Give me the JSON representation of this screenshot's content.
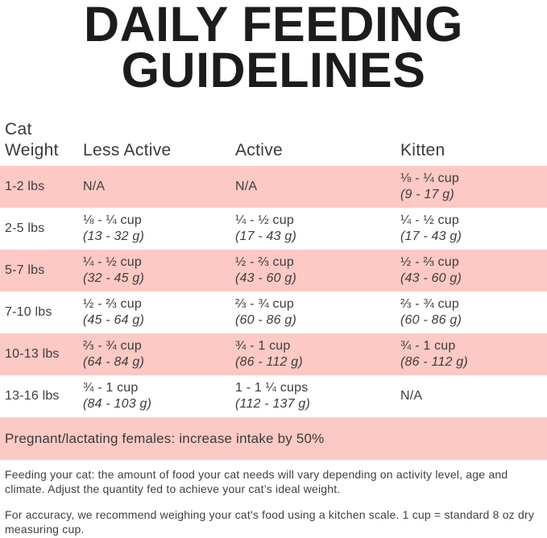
{
  "title": {
    "line1": "DAILY FEEDING",
    "line2": "GUIDELINES"
  },
  "table": {
    "header": {
      "weight_line1": "Cat",
      "weight_line2": "Weight",
      "less_active": "Less Active",
      "active": "Active",
      "kitten": "Kitten"
    },
    "rows": [
      {
        "weight": "1-2 lbs",
        "less_active": {
          "cups": "N/A",
          "grams": ""
        },
        "active": {
          "cups": "N/A",
          "grams": ""
        },
        "kitten": {
          "cups": "⅛ - ¼ cup",
          "grams": "(9 - 17 g)"
        }
      },
      {
        "weight": "2-5 lbs",
        "less_active": {
          "cups": "⅛ - ¼ cup",
          "grams": "(13 - 32 g)"
        },
        "active": {
          "cups": "¼ - ½ cup",
          "grams": "(17 - 43 g)"
        },
        "kitten": {
          "cups": "¼ - ½ cup",
          "grams": "(17 - 43 g)"
        }
      },
      {
        "weight": "5-7 lbs",
        "less_active": {
          "cups": "¼ - ½ cup",
          "grams": "(32 - 45 g)"
        },
        "active": {
          "cups": "½ - ⅔ cup",
          "grams": "(43 - 60 g)"
        },
        "kitten": {
          "cups": "½ - ⅔ cup",
          "grams": "(43 - 60 g)"
        }
      },
      {
        "weight": "7-10 lbs",
        "less_active": {
          "cups": "½ - ⅔ cup",
          "grams": "(45 - 64 g)"
        },
        "active": {
          "cups": "⅔ - ¾ cup",
          "grams": "(60 - 86 g)"
        },
        "kitten": {
          "cups": "⅔ - ¾ cup",
          "grams": "(60 - 86 g)"
        }
      },
      {
        "weight": "10-13 lbs",
        "less_active": {
          "cups": "⅔ - ¾ cup",
          "grams": "(64 - 84 g)"
        },
        "active": {
          "cups": "¾ - 1 cup",
          "grams": "(86 - 112 g)"
        },
        "kitten": {
          "cups": "¾ - 1 cup",
          "grams": "(86 - 112 g)"
        }
      },
      {
        "weight": "13-16 lbs",
        "less_active": {
          "cups": "¾ - 1 cup",
          "grams": "(84 - 103 g)"
        },
        "active": {
          "cups": "1 - 1 ¼ cups",
          "grams": "(112 - 137 g)"
        },
        "kitten": {
          "cups": "N/A",
          "grams": ""
        }
      }
    ],
    "banner": "Pregnant/lactating females: increase intake by 50%"
  },
  "footnotes": {
    "feeding": "Feeding your cat: the amount of food your cat needs will vary depending on activity level, age and climate. Adjust the quantity fed to achieve your cat’s ideal weight.",
    "accuracy": "For accuracy, we recommend weighing your cat's food using a kitchen scale. 1 cup = standard 8 oz dry measuring cup."
  },
  "colors": {
    "row_highlight": "#fcc9c4",
    "text": "#3d3d3d",
    "title": "#1c1c1c",
    "background": "#ffffff"
  }
}
